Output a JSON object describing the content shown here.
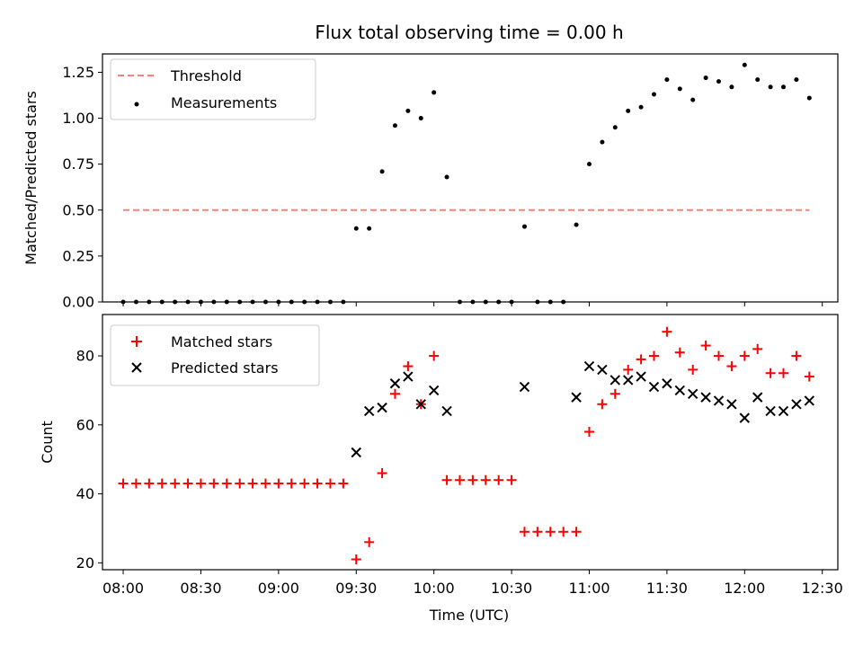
{
  "chart_data": [
    {
      "type": "scatter",
      "title": "Flux total observing time = 0.00 h",
      "ylabel": "Matched/Predicted stars",
      "xlabel": "",
      "xlim": [
        "07:52",
        "12:36"
      ],
      "ylim": [
        0,
        1.35
      ],
      "yticks": [
        0.0,
        0.25,
        0.5,
        0.75,
        1.0,
        1.25
      ],
      "ytick_labels": [
        "0.00",
        "0.25",
        "0.50",
        "0.75",
        "1.00",
        "1.25"
      ],
      "legend_position": "top-left",
      "grid": false,
      "series": [
        {
          "name": "Threshold",
          "kind": "dashed-line",
          "color": "#ff7f7f",
          "x": [
            "08:00",
            "12:25"
          ],
          "y": [
            0.5,
            0.5
          ]
        },
        {
          "name": "Measurements",
          "kind": "dot",
          "color": "#000000",
          "x": [
            "08:00",
            "08:05",
            "08:10",
            "08:15",
            "08:20",
            "08:25",
            "08:30",
            "08:35",
            "08:40",
            "08:45",
            "08:50",
            "08:55",
            "09:00",
            "09:05",
            "09:10",
            "09:15",
            "09:20",
            "09:25",
            "09:30",
            "09:35",
            "09:40",
            "09:45",
            "09:50",
            "09:55",
            "10:00",
            "10:05",
            "10:10",
            "10:15",
            "10:20",
            "10:25",
            "10:30",
            "10:35",
            "10:40",
            "10:45",
            "10:50",
            "10:55",
            "11:00",
            "11:05",
            "11:10",
            "11:15",
            "11:20",
            "11:25",
            "11:30",
            "11:35",
            "11:40",
            "11:45",
            "11:50",
            "11:55",
            "12:00",
            "12:05",
            "12:10",
            "12:15",
            "12:20",
            "12:25"
          ],
          "y": [
            0,
            0,
            0,
            0,
            0,
            0,
            0,
            0,
            0,
            0,
            0,
            0,
            0,
            0,
            0,
            0,
            0,
            0,
            0.4,
            0.4,
            0.71,
            0.96,
            1.04,
            1.0,
            1.14,
            0.68,
            0,
            0,
            0,
            0,
            0,
            0.41,
            0,
            0,
            0,
            0.42,
            0.75,
            0.87,
            0.95,
            1.04,
            1.06,
            1.13,
            1.21,
            1.16,
            1.1,
            1.22,
            1.2,
            1.17,
            1.29,
            1.21,
            1.17,
            1.17,
            1.21,
            1.11
          ]
        }
      ]
    },
    {
      "type": "scatter",
      "title": "",
      "ylabel": "Count",
      "xlabel": "Time (UTC)",
      "xlim": [
        "07:52",
        "12:36"
      ],
      "ylim": [
        18,
        92
      ],
      "yticks": [
        20,
        40,
        60,
        80
      ],
      "ytick_labels": [
        "20",
        "40",
        "60",
        "80"
      ],
      "xticks": [
        "08:00",
        "08:30",
        "09:00",
        "09:30",
        "10:00",
        "10:30",
        "11:00",
        "11:30",
        "12:00",
        "12:30"
      ],
      "xtick_labels": [
        "08:00",
        "08:30",
        "09:00",
        "09:30",
        "10:00",
        "10:30",
        "11:00",
        "11:30",
        "12:00",
        "12:30"
      ],
      "legend_position": "top-left",
      "grid": false,
      "series": [
        {
          "name": "Matched stars",
          "kind": "plus",
          "color": "#ff0000",
          "x": [
            "08:00",
            "08:05",
            "08:10",
            "08:15",
            "08:20",
            "08:25",
            "08:30",
            "08:35",
            "08:40",
            "08:45",
            "08:50",
            "08:55",
            "09:00",
            "09:05",
            "09:10",
            "09:15",
            "09:20",
            "09:25",
            "09:30",
            "09:35",
            "09:40",
            "09:45",
            "09:50",
            "09:55",
            "10:00",
            "10:05",
            "10:10",
            "10:15",
            "10:20",
            "10:25",
            "10:30",
            "10:35",
            "10:40",
            "10:45",
            "10:50",
            "10:55",
            "11:00",
            "11:05",
            "11:10",
            "11:15",
            "11:20",
            "11:25",
            "11:30",
            "11:35",
            "11:40",
            "11:45",
            "11:50",
            "11:55",
            "12:00",
            "12:05",
            "12:10",
            "12:15",
            "12:20",
            "12:25"
          ],
          "y": [
            43,
            43,
            43,
            43,
            43,
            43,
            43,
            43,
            43,
            43,
            43,
            43,
            43,
            43,
            43,
            43,
            43,
            43,
            21,
            26,
            46,
            69,
            77,
            66,
            80,
            44,
            44,
            44,
            44,
            44,
            44,
            29,
            29,
            29,
            29,
            29,
            58,
            66,
            69,
            76,
            79,
            80,
            87,
            81,
            76,
            83,
            80,
            77,
            80,
            82,
            75,
            75,
            80,
            74
          ]
        },
        {
          "name": "Predicted stars",
          "kind": "x",
          "color": "#000000",
          "x": [
            "09:30",
            "09:35",
            "09:40",
            "09:45",
            "09:50",
            "09:55",
            "10:00",
            "10:05",
            "10:35",
            "10:55",
            "11:00",
            "11:05",
            "11:10",
            "11:15",
            "11:20",
            "11:25",
            "11:30",
            "11:35",
            "11:40",
            "11:45",
            "11:50",
            "11:55",
            "12:00",
            "12:05",
            "12:10",
            "12:15",
            "12:20",
            "12:25"
          ],
          "y": [
            52,
            64,
            65,
            72,
            74,
            66,
            70,
            64,
            71,
            68,
            77,
            76,
            73,
            73,
            74,
            71,
            72,
            70,
            69,
            68,
            67,
            66,
            62,
            68,
            64,
            64,
            66,
            67
          ]
        }
      ]
    }
  ]
}
